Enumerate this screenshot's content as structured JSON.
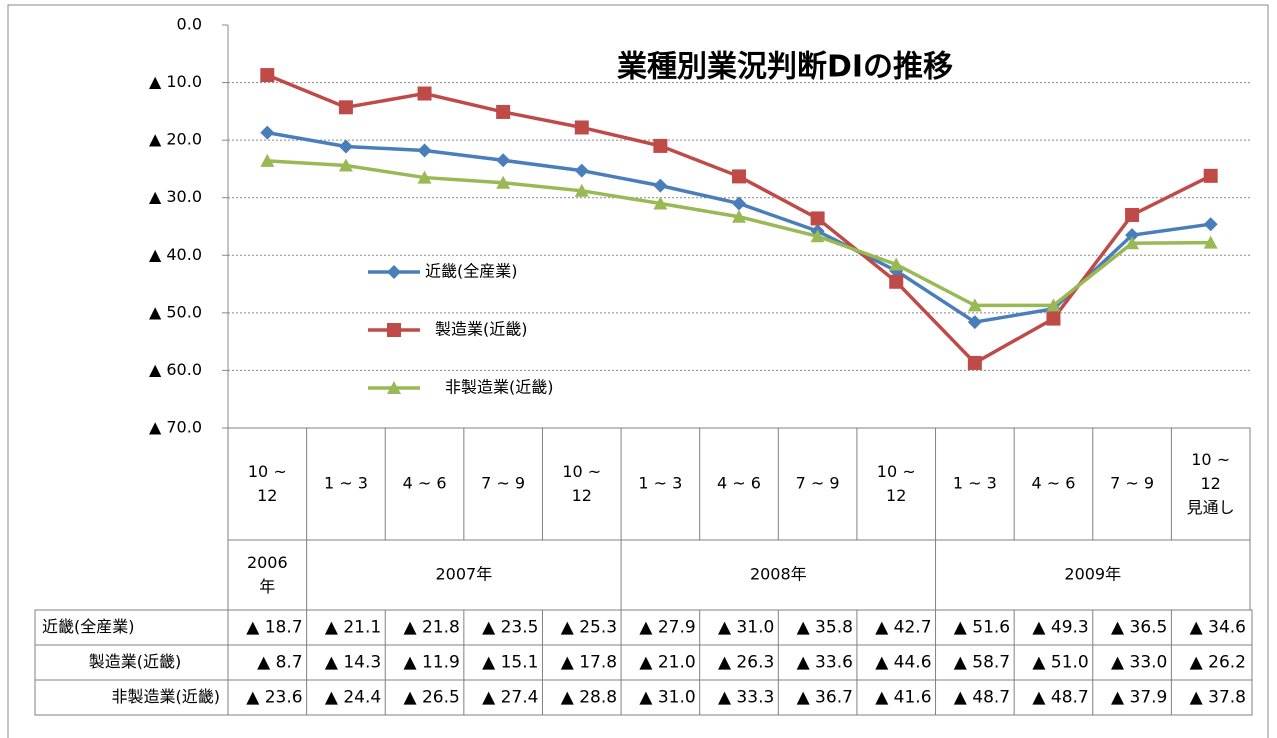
{
  "chart_data": {
    "type": "line",
    "title": "業種別業況判断DIの推移",
    "categories": [
      "10 ~\n12",
      "1 ~ 3",
      "4 ~ 6",
      "7 ~ 9",
      "10 ~\n12",
      "1 ~ 3",
      "4 ~ 6",
      "7 ~ 9",
      "10 ~\n12",
      "1 ~ 3",
      "4 ~ 6",
      "7 ~ 9",
      "10 ~\n12\n見通し"
    ],
    "years": [
      "2006\n年",
      "2007年",
      null,
      null,
      null,
      "2008年",
      null,
      null,
      null,
      "2009年",
      null,
      null,
      null
    ],
    "ylim": [
      -70,
      0
    ],
    "yticks": [
      {
        "value": 0,
        "label": "0.0"
      },
      {
        "value": -10,
        "label": "▲ 10.0"
      },
      {
        "value": -20,
        "label": "▲ 20.0"
      },
      {
        "value": -30,
        "label": "▲ 30.0"
      },
      {
        "value": -40,
        "label": "▲ 40.0"
      },
      {
        "value": -50,
        "label": "▲ 50.0"
      },
      {
        "value": -60,
        "label": "▲ 60.0"
      },
      {
        "value": -70,
        "label": "▲ 70.0"
      }
    ],
    "grid": true,
    "series": [
      {
        "name": "近畿(全産業)",
        "color": "#4a7ebb",
        "marker": "diamond",
        "values": [
          -18.7,
          -21.1,
          -21.8,
          -23.5,
          -25.3,
          -27.9,
          -31.0,
          -35.8,
          -42.7,
          -51.6,
          -49.3,
          -36.5,
          -34.6
        ],
        "value_labels": [
          "▲ 18.7",
          "▲ 21.1",
          "▲ 21.8",
          "▲ 23.5",
          "▲ 25.3",
          "▲ 27.9",
          "▲ 31.0",
          "▲ 35.8",
          "▲ 42.7",
          "▲ 51.6",
          "▲ 49.3",
          "▲ 36.5",
          "▲ 34.6"
        ]
      },
      {
        "name": "製造業(近畿)",
        "color": "#be4b48",
        "marker": "square",
        "values": [
          -8.7,
          -14.3,
          -11.9,
          -15.1,
          -17.8,
          -21.0,
          -26.3,
          -33.6,
          -44.6,
          -58.7,
          -51.0,
          -33.0,
          -26.2
        ],
        "value_labels": [
          "▲ 8.7",
          "▲ 14.3",
          "▲ 11.9",
          "▲ 15.1",
          "▲ 17.8",
          "▲ 21.0",
          "▲ 26.3",
          "▲ 33.6",
          "▲ 44.6",
          "▲ 58.7",
          "▲ 51.0",
          "▲ 33.0",
          "▲ 26.2"
        ]
      },
      {
        "name": "非製造業(近畿)",
        "color": "#98b954",
        "marker": "triangle",
        "values": [
          -23.6,
          -24.4,
          -26.5,
          -27.4,
          -28.8,
          -31.0,
          -33.3,
          -36.7,
          -41.6,
          -48.7,
          -48.7,
          -37.9,
          -37.8
        ],
        "value_labels": [
          "▲ 23.6",
          "▲ 24.4",
          "▲ 26.5",
          "▲ 27.4",
          "▲ 28.8",
          "▲ 31.0",
          "▲ 33.3",
          "▲ 36.7",
          "▲ 41.6",
          "▲ 48.7",
          "▲ 48.7",
          "▲ 37.9",
          "▲ 37.8"
        ]
      }
    ]
  }
}
